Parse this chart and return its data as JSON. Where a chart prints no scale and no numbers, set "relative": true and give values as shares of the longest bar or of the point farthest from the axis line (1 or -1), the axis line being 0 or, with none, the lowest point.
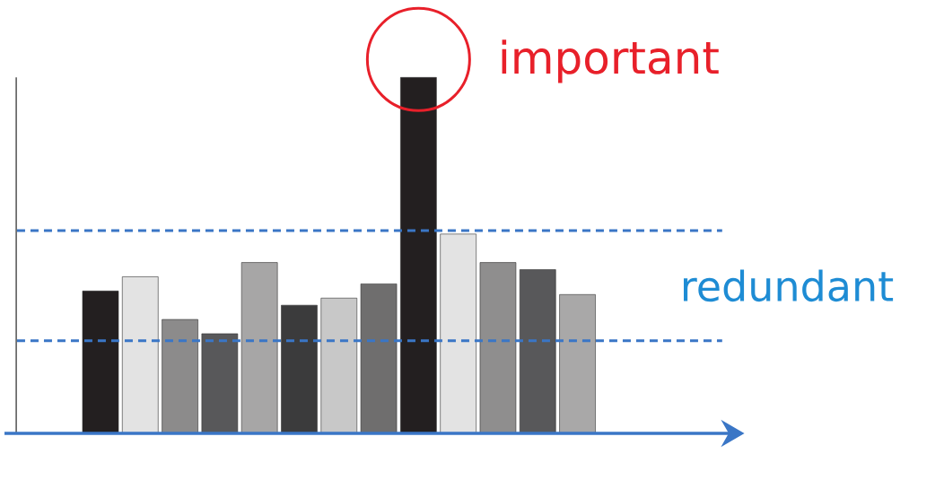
{
  "chart_data": {
    "type": "bar",
    "relative": true,
    "categories": [
      null,
      null,
      null,
      null,
      null,
      null,
      null,
      null,
      null,
      null,
      null,
      null,
      null
    ],
    "values": [
      0.4,
      0.44,
      0.32,
      0.28,
      0.48,
      0.36,
      0.38,
      0.42,
      1,
      0.56,
      0.48,
      0.46,
      0.39
    ],
    "colors": [
      "#231f20",
      "#e3e3e3",
      "#8c8b8b",
      "#58585a",
      "#a7a6a6",
      "#3b3b3c",
      "#c8c8c8",
      "#6f6e6e",
      "#231f20",
      "#e3e3e3",
      "#8f8e8e",
      "#58585a",
      "#a9a8a8"
    ],
    "ref_lines": [
      {
        "axis": "y",
        "value": 0.57,
        "color": "#3a76c6",
        "line_style": "dashed"
      },
      {
        "axis": "y",
        "value": 0.26,
        "color": "#3a76c6",
        "line_style": "dashed"
      }
    ],
    "annotations": [
      "important",
      "redundant"
    ]
  }
}
